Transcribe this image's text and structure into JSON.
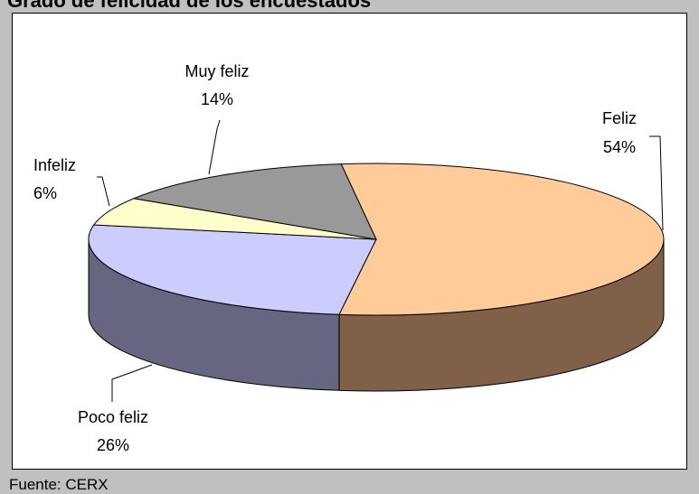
{
  "header": {
    "cut_title": "Grado de felicidad de los encuestados"
  },
  "source": "Fuente: CERX",
  "chart_data": {
    "type": "pie",
    "variant": "3d",
    "title": "",
    "categories": [
      "Feliz",
      "Poco feliz",
      "Infeliz",
      "Muy feliz"
    ],
    "values": [
      54,
      26,
      6,
      14
    ],
    "labels": [
      "54%",
      "26%",
      "6%",
      "14%"
    ],
    "colors": {
      "Feliz": {
        "top": "#ffcc99",
        "side": "#806048"
      },
      "Poco feliz": {
        "top": "#ccccff",
        "side": "#666680"
      },
      "Infeliz": {
        "top": "#ffffcc",
        "side": "#808066"
      },
      "Muy feliz": {
        "top": "#999999",
        "side": "#4d4d4d"
      }
    },
    "legend": "none"
  }
}
